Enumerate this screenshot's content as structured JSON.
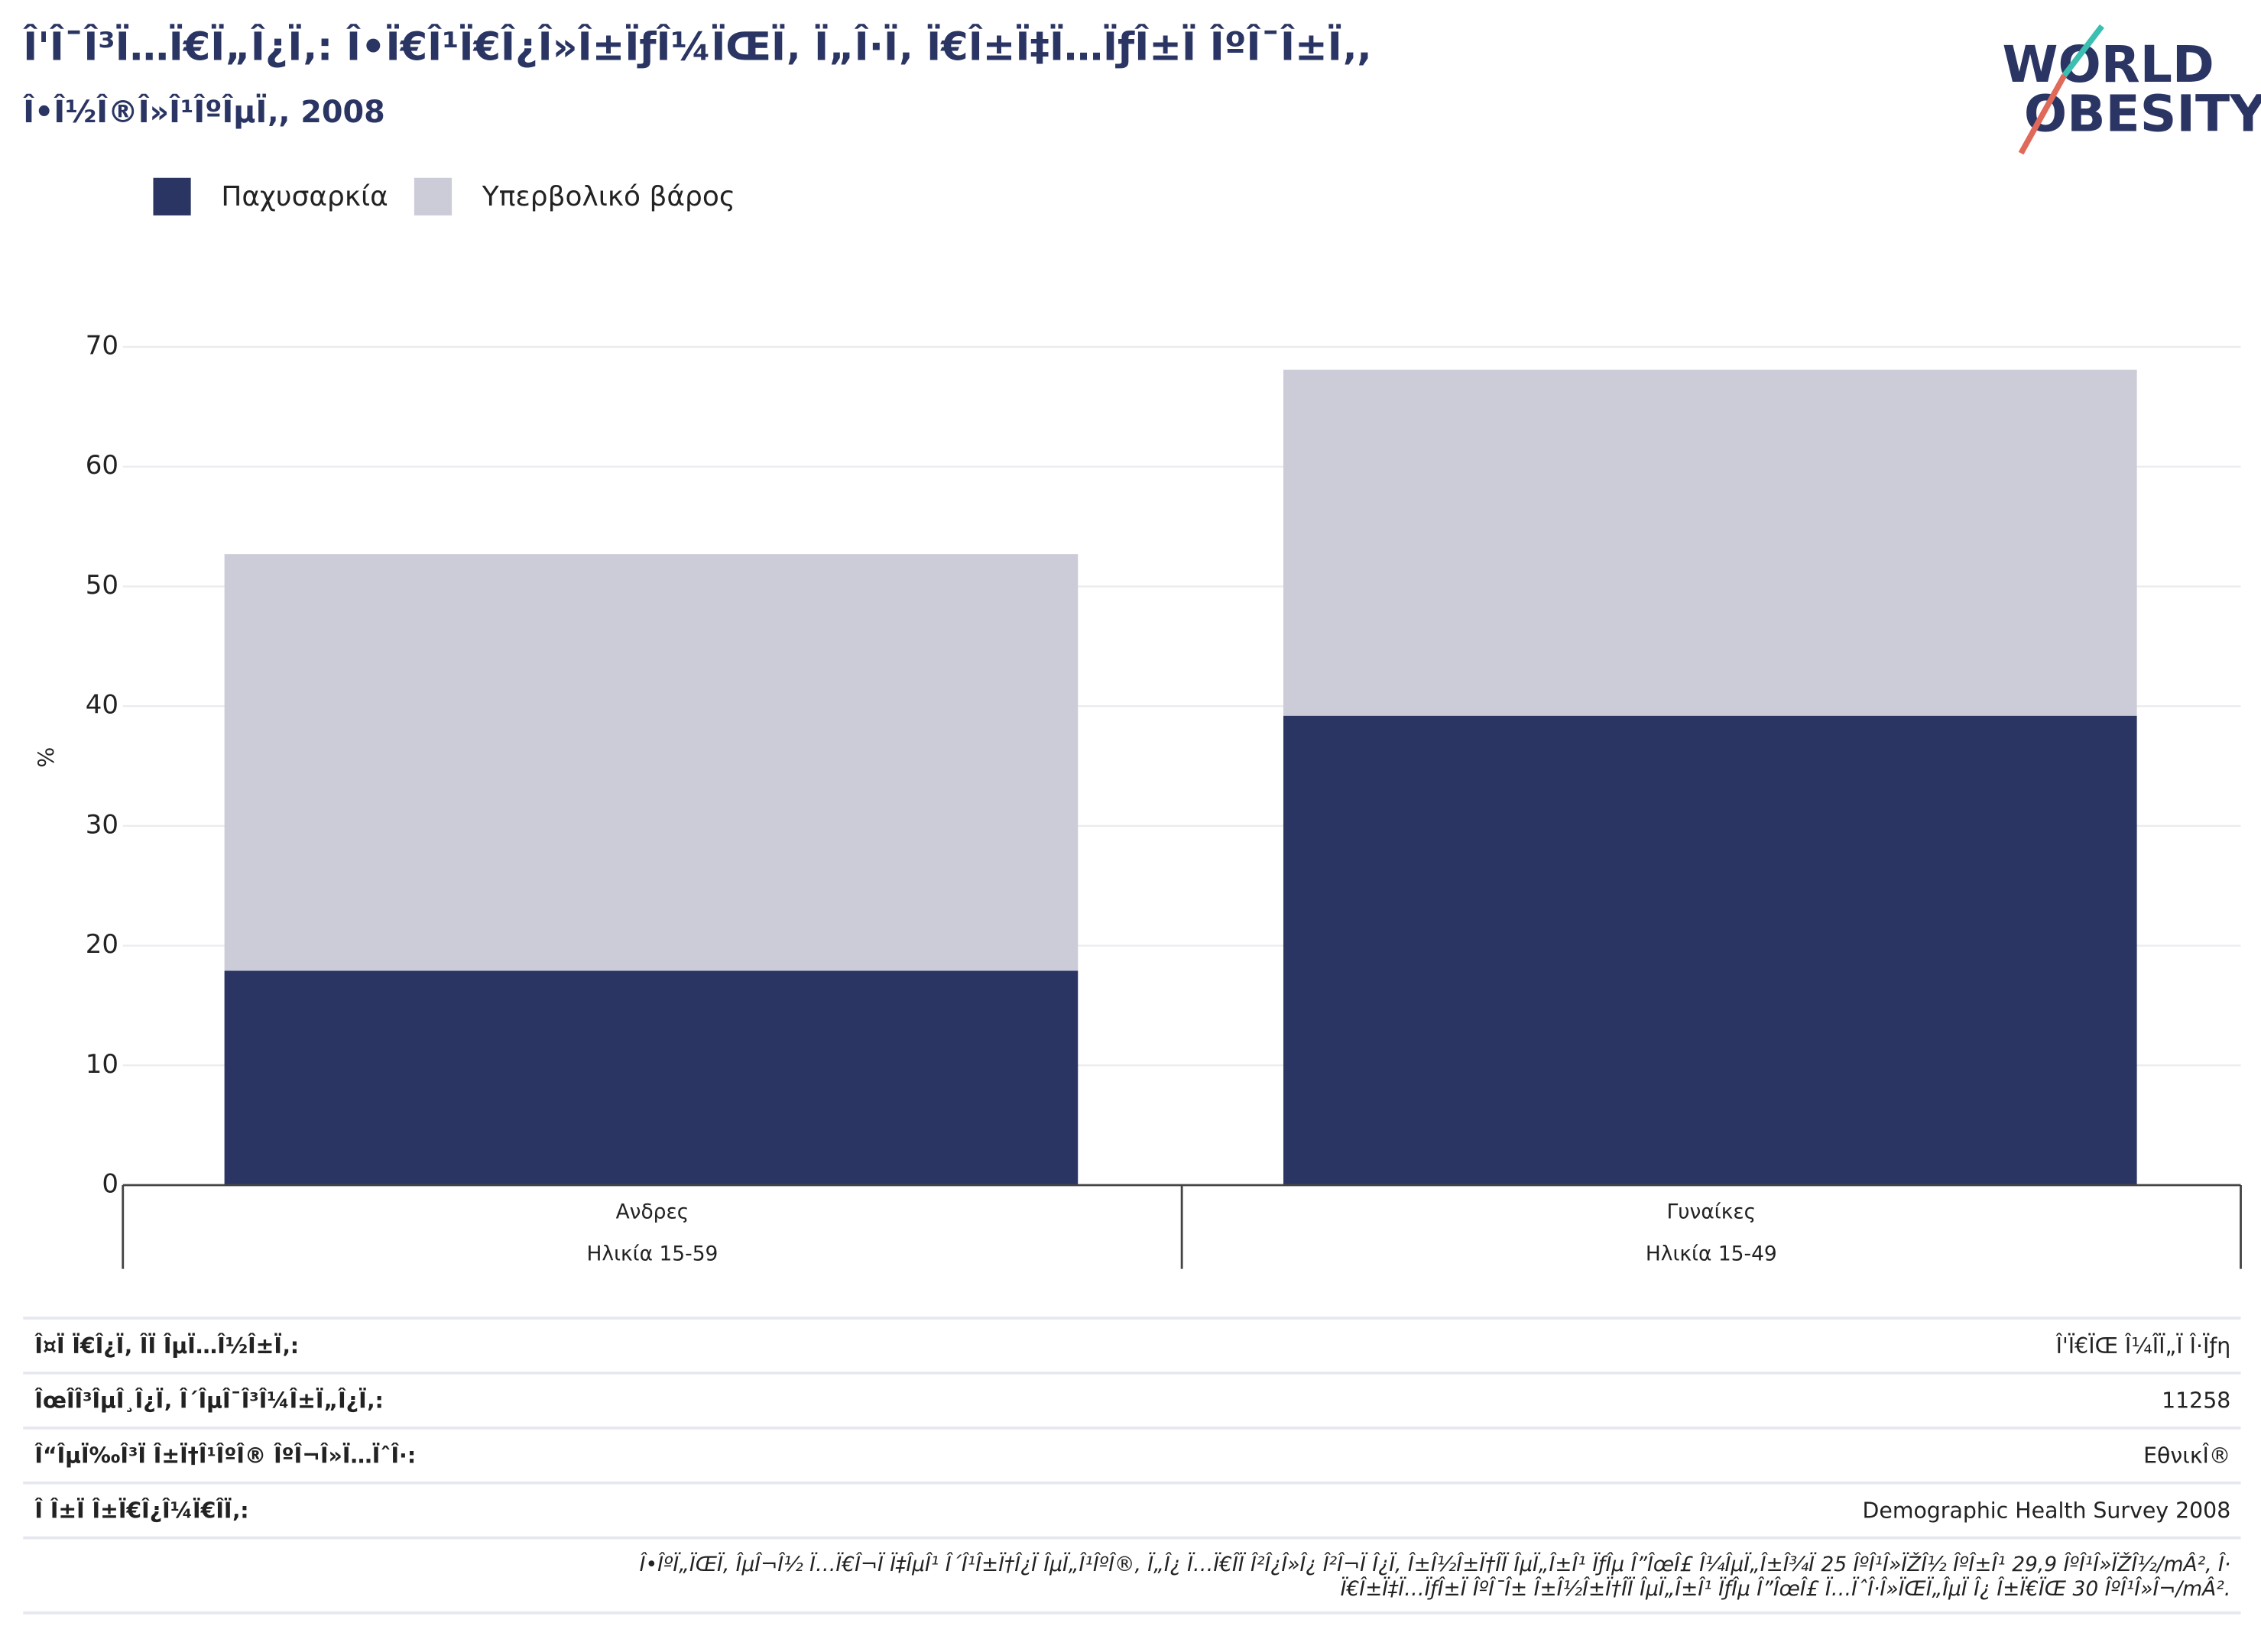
{
  "chart_data": {
    "type": "stacked_bar",
    "title": "Î'Î¯Î³Ï…Ï€Ï„Î¿Ï‚: Î•Ï€Î¹Ï€Î¿Î»Î±ÏƒÎ¼ÏŒÏ‚ Ï„Î·Ï‚ Ï€Î±Ï‡Ï…ÏƒÎ±Ï ÎºÎ¯Î±Ï‚,",
    "subtitle": "Î•Î½Î®Î»Î¹ÎºÎµÏ‚, 2008",
    "logo": [
      "WORLD",
      "OBESITY"
    ],
    "y_label": "%",
    "categories": [
      "Ανδρες",
      "Γυναίκες"
    ],
    "category_groups": [
      "Ηλικία 15-59",
      "Ηλικία 15-49"
    ],
    "series": [
      {
        "name": "Παχυσαρκία",
        "color": "#2a3563",
        "values": [
          17.9,
          39.2
        ]
      },
      {
        "name": "Υπερβολικό βάρος",
        "color": "#cbccd8",
        "values": [
          34.8,
          28.9
        ]
      }
    ],
    "ylim": [
      0,
      70
    ],
    "yticks": [
      0,
      10,
      20,
      30,
      40,
      50,
      60,
      70
    ],
    "grid": true,
    "legend": "top-left"
  },
  "footer": {
    "rows": [
      [
        "Î¤Ï Ï€Î¿Ï‚ Î­Ï ÎµÏ…Î½Î±Ï‚:",
        "Î'Ï€ÏŒ Î¼ÎÏ„Ï Î·Ïƒη"
      ],
      [
        "ÎœÎ­Î³ÎµÎ¸Î¿Ï‚ Î´ÎµÎ¯Î³Î¼Î±Ï„Î¿Ï‚:",
        "11258"
      ],
      [
        "Î“ÎµÏ‰Î³Ï Î±Ï†Î¹ÎºÎ® ÎºÎ¬Î»Ï…ÏˆÎ·:",
        "ΕθνικÎ®"
      ],
      [
        "Î Î±Ï Î±Ï€Î¿Î¼Ï€Î­Ï‚:",
        "Demographic Health Survey 2008"
      ]
    ],
    "note": [
      "Î•ÎºÏ„ÏŒÏ‚ ÎµÎ¬Î½ Ï…Ï€Î¬Ï Ï‡ÎµÎ¹ Î´Î¹Î±Ï†Î¿Ï ÎµÏ„Î¹ÎºÎ®, Ï„Î¿ Ï…Ï€Î­Ï Î²Î¿Î»Î¿ Î²Î¬Ï Î¿Ï‚ Î±Î½Î±Ï†Î­Ï ÎµÏ„Î±Î¹ ÏƒÎµ Î”ÎœÎ£ Î¼ÎµÏ„Î±Î¾Ï 25 ÎºÎ¹Î»ÏŽÎ½ ÎºÎ±Î¹ 29,9 ÎºÎ¹Î»ÏŽÎ½/mÂ², Î·",
      "Ï€Î±Ï‡Ï…ÏƒÎ±Ï ÎºÎ¯Î± Î±Î½Î±Ï†Î­Ï ÎµÏ„Î±Î¹ ÏƒÎµ Î”ÎœÎ£ Ï…ÏˆÎ·Î»ÏŒÏ„ÎµÏ Î¿ Î±Ï€ÏŒ 30 ÎºÎ¹Î»Î¬/mÂ²."
    ]
  }
}
